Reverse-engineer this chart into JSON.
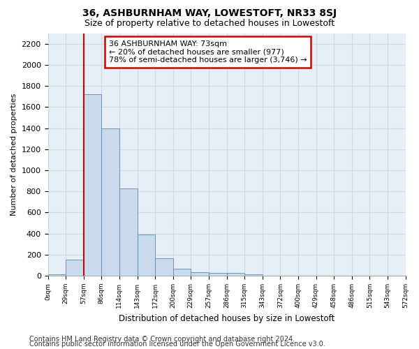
{
  "title": "36, ASHBURNHAM WAY, LOWESTOFT, NR33 8SJ",
  "subtitle": "Size of property relative to detached houses in Lowestoft",
  "xlabel": "Distribution of detached houses by size in Lowestoft",
  "ylabel": "Number of detached properties",
  "bar_values": [
    15,
    155,
    1720,
    1400,
    830,
    390,
    165,
    65,
    35,
    30,
    30,
    15,
    0,
    0,
    0,
    0,
    0,
    0,
    0,
    0
  ],
  "bin_labels": [
    "0sqm",
    "29sqm",
    "57sqm",
    "86sqm",
    "114sqm",
    "143sqm",
    "172sqm",
    "200sqm",
    "229sqm",
    "257sqm",
    "286sqm",
    "315sqm",
    "343sqm",
    "372sqm",
    "400sqm",
    "429sqm",
    "458sqm",
    "486sqm",
    "515sqm",
    "543sqm",
    "572sqm"
  ],
  "bar_color": "#c9daea",
  "bar_edge_color": "#5a8ab5",
  "grid_color": "#d0d8e8",
  "bg_color": "#e8eef6",
  "vline_color": "#cc0000",
  "vline_x_idx": 2,
  "annotation_text_line1": "36 ASHBURNHAM WAY: 73sqm",
  "annotation_text_line2": "← 20% of detached houses are smaller (977)",
  "annotation_text_line3": "78% of semi-detached houses are larger (3,746) →",
  "annotation_box_color": "#cc0000",
  "ylim": [
    0,
    2300
  ],
  "yticks": [
    0,
    200,
    400,
    600,
    800,
    1000,
    1200,
    1400,
    1600,
    1800,
    2000,
    2200
  ],
  "footer_line1": "Contains HM Land Registry data © Crown copyright and database right 2024.",
  "footer_line2": "Contains public sector information licensed under the Open Government Licence v3.0.",
  "title_fontsize": 10,
  "subtitle_fontsize": 9,
  "annotation_fontsize": 8,
  "footer_fontsize": 7,
  "ylabel_fontsize": 8,
  "xlabel_fontsize": 8.5
}
